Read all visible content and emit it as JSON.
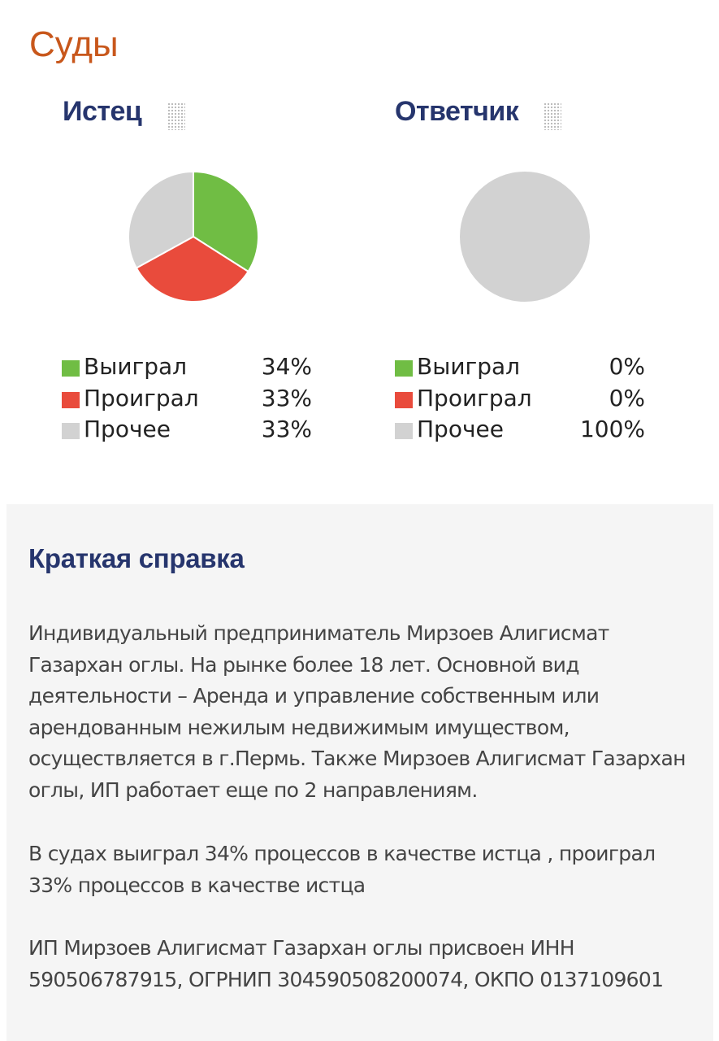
{
  "section_title": "Суды",
  "colors": {
    "won": "#70bd44",
    "lost": "#e94b3c",
    "other": "#d2d2d2",
    "title": "#26356d",
    "section": "#c8571b"
  },
  "chart_data": [
    {
      "type": "pie",
      "title": "Истец",
      "categories": [
        "Выиграл",
        "Проиграл",
        "Прочее"
      ],
      "values": [
        34,
        33,
        33
      ],
      "value_labels": [
        "34%",
        "33%",
        "33%"
      ],
      "colors": [
        "#70bd44",
        "#e94b3c",
        "#d2d2d2"
      ]
    },
    {
      "type": "pie",
      "title": "Ответчик",
      "categories": [
        "Выиграл",
        "Проиграл",
        "Прочее"
      ],
      "values": [
        0,
        0,
        100
      ],
      "value_labels": [
        "0%",
        "0%",
        "100%"
      ],
      "colors": [
        "#70bd44",
        "#e94b3c",
        "#d2d2d2"
      ]
    }
  ],
  "info": {
    "title": "Краткая справка",
    "paragraphs": [
      "Индивидуальный предприниматель Мирзоев Алигисмат Газархан оглы. На рынке более 18 лет. Основной вид деятельности – Аренда и управление собственным или арендованным нежилым недвижимым имуществом, осуществляется в г.Пермь. Также Мирзоев Алигисмат Газархан оглы, ИП работает еще по 2 направлениям.",
      "В судах выиграл 34% процессов в качестве истца , проиграл 33% процессов в качестве истца",
      "ИП Мирзоев Алигисмат Газархан оглы присвоен ИНН 590506787915, ОГРНИП 304590508200074, ОКПО 0137109601"
    ]
  }
}
